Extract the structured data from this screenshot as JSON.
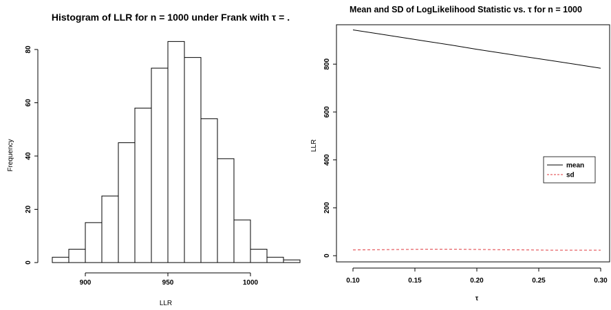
{
  "chart_data": [
    {
      "type": "bar",
      "title": "Histogram of LLR for n = 1000 under Frank with τ = .",
      "xlabel": "LLR",
      "ylabel": "Frequency",
      "bin_edges": [
        880,
        890,
        900,
        910,
        920,
        930,
        940,
        950,
        960,
        970,
        980,
        990,
        1000,
        1010,
        1020,
        1030
      ],
      "values": [
        2,
        5,
        15,
        25,
        45,
        58,
        73,
        83,
        77,
        54,
        39,
        16,
        5,
        2,
        1
      ],
      "xticks": [
        900,
        950,
        1000
      ],
      "yticks": [
        0,
        20,
        40,
        60,
        80
      ],
      "ylim": [
        0,
        85
      ],
      "grid": false
    },
    {
      "type": "line",
      "title": "Mean and SD of LogLikelihood Statistic vs. τ for n = 1000",
      "xlabel": "τ",
      "ylabel": "LLR",
      "x": [
        0.1,
        0.12,
        0.14,
        0.16,
        0.18,
        0.2,
        0.22,
        0.24,
        0.26,
        0.28,
        0.3
      ],
      "series": [
        {
          "name": "mean",
          "color": "#000000",
          "dash": "solid",
          "values": [
            943,
            927,
            911,
            895,
            879,
            862,
            846,
            830,
            815,
            799,
            783
          ]
        },
        {
          "name": "sd",
          "color": "#e0383e",
          "dash": "dashed",
          "values": [
            24,
            25,
            26,
            27,
            27,
            26,
            25,
            24,
            23,
            23,
            23
          ]
        }
      ],
      "xticks": [
        "0.10",
        "0.15",
        "0.20",
        "0.25",
        "0.30"
      ],
      "yticks": [
        0,
        200,
        400,
        600,
        800
      ],
      "xlim": [
        0.1,
        0.3
      ],
      "ylim": [
        0,
        943
      ],
      "legend": "right",
      "grid": false
    }
  ]
}
